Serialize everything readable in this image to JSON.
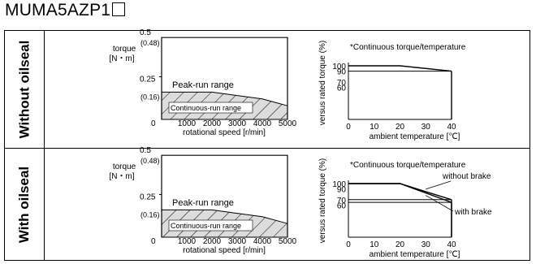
{
  "title": {
    "model": "MUMA5AZP1"
  },
  "panels": [
    {
      "side_label": "Without oilseal",
      "speed_chart": {
        "ylabel_line1": "torque",
        "ylabel_line2": "[N・m]",
        "xlabel": "rotational speed [r/min]",
        "y_ticks": [
          {
            "value": 0.5,
            "label": "0.5"
          },
          {
            "value": 0.48,
            "label": "(0.48)"
          },
          {
            "value": 0.25,
            "label": "0.25"
          },
          {
            "value": 0.16,
            "label": "(0.16)"
          }
        ],
        "x_ticks": [
          "0",
          "1000",
          "2000",
          "3000",
          "4000",
          "5000"
        ],
        "zero_label": "0",
        "region_peak": "Peak-run range",
        "region_cont": "Continuous-run range",
        "peak_curve": [
          [
            0,
            0.48
          ],
          [
            5000,
            0.48
          ]
        ],
        "cont_curve": [
          [
            0,
            0.16
          ],
          [
            1000,
            0.16
          ],
          [
            2000,
            0.16
          ],
          [
            3000,
            0.14
          ],
          [
            4000,
            0.12
          ],
          [
            5000,
            0.08
          ]
        ]
      },
      "temp_chart": {
        "title": "*Continuous torque/temperature",
        "ylabel": "versus rated torque (%)",
        "xlabel": "ambient temperature [℃]",
        "y_ticks": [
          "100",
          "90",
          "70",
          "60"
        ],
        "x_ticks": [
          "0",
          "10",
          "20",
          "30",
          "40"
        ],
        "series": [
          {
            "name": "",
            "points": [
              [
                0,
                100
              ],
              [
                20,
                100
              ],
              [
                40,
                90
              ]
            ]
          }
        ]
      }
    },
    {
      "side_label": "With oilseal",
      "speed_chart": {
        "ylabel_line1": "torque",
        "ylabel_line2": "[N・m]",
        "xlabel": "rotational speed [r/min]",
        "y_ticks": [
          {
            "value": 0.5,
            "label": "0.5"
          },
          {
            "value": 0.48,
            "label": "(0.48)"
          },
          {
            "value": 0.25,
            "label": "0.25"
          },
          {
            "value": 0.16,
            "label": "(0.16)"
          }
        ],
        "x_ticks": [
          "0",
          "1000",
          "2000",
          "3000",
          "4000",
          "5000"
        ],
        "zero_label": "0",
        "region_peak": "Peak-run range",
        "region_cont": "Continuous-run range",
        "peak_curve": [
          [
            0,
            0.48
          ],
          [
            5000,
            0.48
          ]
        ],
        "cont_curve": [
          [
            0,
            0.16
          ],
          [
            1000,
            0.16
          ],
          [
            2000,
            0.16
          ],
          [
            3000,
            0.14
          ],
          [
            4000,
            0.12
          ],
          [
            5000,
            0.08
          ]
        ]
      },
      "temp_chart": {
        "title": "*Continuous torque/temperature",
        "ylabel": "versus rated torque (%)",
        "xlabel": "ambient temperature [℃]",
        "y_ticks": [
          "100",
          "90",
          "70",
          "60"
        ],
        "x_ticks": [
          "0",
          "10",
          "20",
          "30",
          "40"
        ],
        "series": [
          {
            "name": "without brake",
            "points": [
              [
                0,
                100
              ],
              [
                20,
                100
              ],
              [
                40,
                70
              ]
            ]
          },
          {
            "name": "with brake",
            "points": [
              [
                0,
                100
              ],
              [
                20,
                100
              ],
              [
                40,
                65
              ]
            ]
          }
        ]
      }
    }
  ],
  "chart_data": [
    {
      "type": "area",
      "title": "",
      "xlabel": "rotational speed [r/min]",
      "ylabel": "torque [N・m]",
      "xlim": [
        0,
        5000
      ],
      "ylim": [
        0,
        0.5
      ],
      "series": [
        {
          "name": "Peak-run range",
          "x": [
            0,
            5000
          ],
          "values": [
            0.48,
            0.48
          ]
        },
        {
          "name": "Continuous-run range",
          "x": [
            0,
            1000,
            2000,
            3000,
            4000,
            5000
          ],
          "values": [
            0.16,
            0.16,
            0.16,
            0.14,
            0.12,
            0.08
          ]
        }
      ]
    },
    {
      "type": "line",
      "title": "*Continuous torque/temperature",
      "xlabel": "ambient temperature [℃]",
      "ylabel": "versus rated torque (%)",
      "xlim": [
        0,
        40
      ],
      "series": [
        {
          "x": [
            0,
            20,
            40
          ],
          "values": [
            100,
            100,
            90
          ]
        }
      ]
    },
    {
      "type": "area",
      "title": "",
      "xlabel": "rotational speed [r/min]",
      "ylabel": "torque [N・m]",
      "xlim": [
        0,
        5000
      ],
      "ylim": [
        0,
        0.5
      ],
      "series": [
        {
          "name": "Peak-run range",
          "x": [
            0,
            5000
          ],
          "values": [
            0.48,
            0.48
          ]
        },
        {
          "name": "Continuous-run range",
          "x": [
            0,
            1000,
            2000,
            3000,
            4000,
            5000
          ],
          "values": [
            0.16,
            0.16,
            0.16,
            0.14,
            0.12,
            0.08
          ]
        }
      ]
    },
    {
      "type": "line",
      "title": "*Continuous torque/temperature",
      "xlabel": "ambient temperature [℃]",
      "ylabel": "versus rated torque (%)",
      "xlim": [
        0,
        40
      ],
      "series": [
        {
          "name": "without brake",
          "x": [
            0,
            20,
            40
          ],
          "values": [
            100,
            100,
            70
          ]
        },
        {
          "name": "with brake",
          "x": [
            0,
            20,
            40
          ],
          "values": [
            100,
            100,
            65
          ]
        }
      ]
    }
  ]
}
